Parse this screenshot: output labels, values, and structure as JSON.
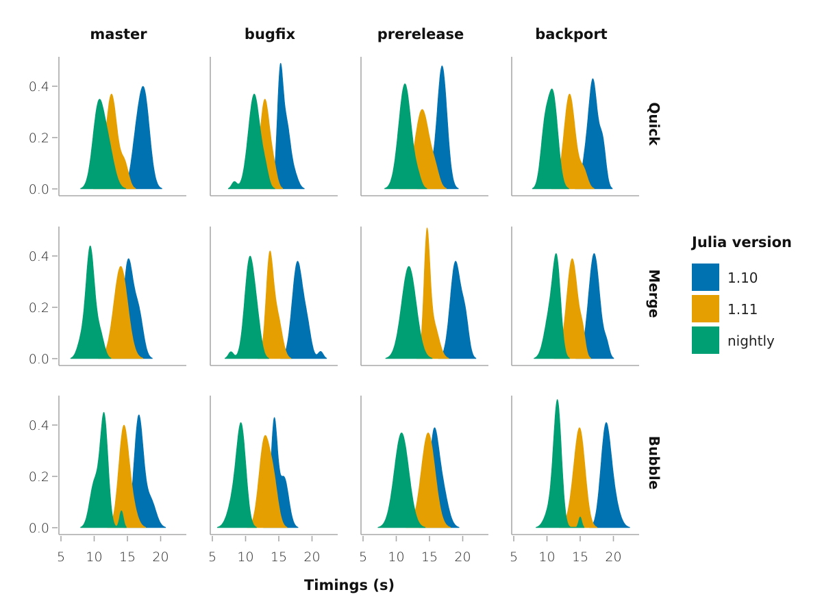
{
  "chart_data": {
    "type": "area",
    "subtype": "faceted-density",
    "title": "",
    "xlabel": "Timings (s)",
    "ylabel": "",
    "xlim": [
      4.8,
      24
    ],
    "ylim": [
      0,
      0.53
    ],
    "xticks": [
      5,
      10,
      15,
      20
    ],
    "xtick_labels": [
      "5",
      "10",
      "15",
      "20"
    ],
    "yticks": [
      0.0,
      0.2,
      0.4
    ],
    "ytick_labels": [
      "0.0",
      "0.2",
      "0.4"
    ],
    "columns": [
      "master",
      "bugfix",
      "prerelease",
      "backport"
    ],
    "rows": [
      "Quick",
      "Merge",
      "Bubble"
    ],
    "legend": {
      "title": "Julia version",
      "position": "right",
      "entries": [
        {
          "label": "1.10",
          "color": "#0072b2"
        },
        {
          "label": "1.11",
          "color": "#e69f00"
        },
        {
          "label": "nightly",
          "color": "#009e73"
        }
      ]
    },
    "draw_order": [
      "1.10",
      "1.11",
      "nightly"
    ],
    "note": "Each density described by gaussian mixture components [mean_s, sd_s, weight]; peak = approximate max density",
    "panels": [
      {
        "row": "Quick",
        "col": "master",
        "series": [
          {
            "name": "1.10",
            "peak_x": 17.4,
            "peak": 0.4,
            "components": [
              [
                17.5,
                0.85,
                0.78
              ],
              [
                16.2,
                0.7,
                0.22
              ]
            ]
          },
          {
            "name": "1.11",
            "peak_x": 12.6,
            "peak": 0.37,
            "components": [
              [
                12.6,
                0.85,
                0.85
              ],
              [
                14.6,
                0.6,
                0.15
              ]
            ]
          },
          {
            "name": "nightly",
            "peak_x": 10.7,
            "peak": 0.35,
            "components": [
              [
                10.6,
                0.85,
                0.65
              ],
              [
                12.1,
                0.9,
                0.35
              ]
            ]
          }
        ]
      },
      {
        "row": "Quick",
        "col": "bugfix",
        "series": [
          {
            "name": "1.10",
            "peak_x": 15.2,
            "peak": 0.49,
            "components": [
              [
                15.2,
                0.45,
                0.55
              ],
              [
                16.2,
                0.55,
                0.35
              ],
              [
                17.3,
                0.6,
                0.1
              ]
            ]
          },
          {
            "name": "1.11",
            "peak_x": 12.9,
            "peak": 0.35,
            "components": [
              [
                12.9,
                0.75,
                0.9
              ],
              [
                14.3,
                0.5,
                0.1
              ]
            ]
          },
          {
            "name": "nightly",
            "peak_x": 11.2,
            "peak": 0.37,
            "components": [
              [
                11.3,
                0.9,
                0.9
              ],
              [
                8.3,
                0.4,
                0.03
              ],
              [
                13.0,
                0.5,
                0.07
              ]
            ]
          }
        ]
      },
      {
        "row": "Quick",
        "col": "prerelease",
        "series": [
          {
            "name": "1.10",
            "peak_x": 16.9,
            "peak": 0.48,
            "components": [
              [
                16.9,
                0.75,
                0.9
              ],
              [
                15.0,
                0.7,
                0.1
              ]
            ]
          },
          {
            "name": "1.11",
            "peak_x": 13.9,
            "peak": 0.31,
            "components": [
              [
                13.9,
                1.1,
                0.92
              ],
              [
                15.9,
                0.6,
                0.08
              ]
            ]
          },
          {
            "name": "nightly",
            "peak_x": 11.3,
            "peak": 0.41,
            "components": [
              [
                11.3,
                0.95,
                0.96
              ],
              [
                13.3,
                0.5,
                0.04
              ]
            ]
          }
        ]
      },
      {
        "row": "Quick",
        "col": "backport",
        "series": [
          {
            "name": "1.10",
            "peak_x": 17.0,
            "peak": 0.43,
            "components": [
              [
                16.9,
                0.7,
                0.72
              ],
              [
                18.4,
                0.5,
                0.2
              ],
              [
                15.6,
                0.5,
                0.08
              ]
            ]
          },
          {
            "name": "1.11",
            "peak_x": 13.3,
            "peak": 0.37,
            "components": [
              [
                13.4,
                0.85,
                0.88
              ],
              [
                15.5,
                0.6,
                0.12
              ]
            ]
          },
          {
            "name": "nightly",
            "peak_x": 10.8,
            "peak": 0.39,
            "components": [
              [
                10.9,
                0.75,
                0.7
              ],
              [
                9.6,
                0.6,
                0.3
              ]
            ]
          }
        ]
      },
      {
        "row": "Merge",
        "col": "master",
        "series": [
          {
            "name": "1.10",
            "peak_x": 15.2,
            "peak": 0.39,
            "components": [
              [
                15.1,
                0.75,
                0.7
              ],
              [
                16.7,
                0.7,
                0.3
              ]
            ]
          },
          {
            "name": "1.11",
            "peak_x": 14.0,
            "peak": 0.36,
            "components": [
              [
                14.0,
                1.05,
                1.0
              ]
            ]
          },
          {
            "name": "nightly",
            "peak_x": 9.4,
            "peak": 0.44,
            "components": [
              [
                9.4,
                0.65,
                0.75
              ],
              [
                8.0,
                0.6,
                0.1
              ],
              [
                10.9,
                0.6,
                0.15
              ]
            ]
          }
        ]
      },
      {
        "row": "Merge",
        "col": "bugfix",
        "series": [
          {
            "name": "1.10",
            "peak_x": 17.8,
            "peak": 0.38,
            "components": [
              [
                17.8,
                0.8,
                0.8
              ],
              [
                19.3,
                0.6,
                0.17
              ],
              [
                21.3,
                0.4,
                0.03
              ]
            ]
          },
          {
            "name": "1.11",
            "peak_x": 13.6,
            "peak": 0.42,
            "components": [
              [
                13.6,
                0.55,
                0.65
              ],
              [
                14.8,
                0.7,
                0.35
              ]
            ]
          },
          {
            "name": "nightly",
            "peak_x": 10.6,
            "peak": 0.4,
            "components": [
              [
                10.6,
                0.75,
                0.8
              ],
              [
                11.8,
                0.6,
                0.17
              ],
              [
                7.8,
                0.4,
                0.03
              ]
            ]
          }
        ]
      },
      {
        "row": "Merge",
        "col": "prerelease",
        "series": [
          {
            "name": "1.10",
            "peak_x": 19.0,
            "peak": 0.38,
            "components": [
              [
                18.9,
                0.8,
                0.8
              ],
              [
                20.4,
                0.55,
                0.2
              ]
            ]
          },
          {
            "name": "1.11",
            "peak_x": 14.6,
            "peak": 0.51,
            "components": [
              [
                14.6,
                0.45,
                0.65
              ],
              [
                15.6,
                0.8,
                0.35
              ]
            ]
          },
          {
            "name": "nightly",
            "peak_x": 11.9,
            "peak": 0.36,
            "components": [
              [
                11.9,
                1.1,
                1.0
              ]
            ]
          }
        ]
      },
      {
        "row": "Merge",
        "col": "backport",
        "series": [
          {
            "name": "1.10",
            "peak_x": 17.1,
            "peak": 0.41,
            "components": [
              [
                17.1,
                0.85,
                0.95
              ],
              [
                19.0,
                0.4,
                0.05
              ]
            ]
          },
          {
            "name": "1.11",
            "peak_x": 13.8,
            "peak": 0.39,
            "components": [
              [
                13.8,
                0.85,
                0.92
              ],
              [
                15.4,
                0.4,
                0.08
              ]
            ]
          },
          {
            "name": "nightly",
            "peak_x": 11.5,
            "peak": 0.41,
            "components": [
              [
                11.5,
                0.6,
                0.6
              ],
              [
                10.4,
                0.8,
                0.4
              ]
            ]
          }
        ]
      },
      {
        "row": "Bubble",
        "col": "master",
        "series": [
          {
            "name": "1.10",
            "peak_x": 16.7,
            "peak": 0.44,
            "components": [
              [
                16.7,
                0.7,
                0.78
              ],
              [
                18.5,
                0.8,
                0.22
              ]
            ]
          },
          {
            "name": "1.11",
            "peak_x": 14.4,
            "peak": 0.4,
            "components": [
              [
                14.4,
                0.75,
                0.8
              ],
              [
                15.6,
                0.8,
                0.2
              ]
            ]
          },
          {
            "name": "nightly",
            "peak_x": 11.5,
            "peak": 0.45,
            "components": [
              [
                11.5,
                0.6,
                0.65
              ],
              [
                10.0,
                0.7,
                0.3
              ],
              [
                14.1,
                0.3,
                0.05
              ]
            ]
          }
        ]
      },
      {
        "row": "Bubble",
        "col": "bugfix",
        "series": [
          {
            "name": "1.10",
            "peak_x": 14.3,
            "peak": 0.43,
            "components": [
              [
                14.3,
                0.5,
                0.6
              ],
              [
                15.8,
                0.7,
                0.4
              ]
            ]
          },
          {
            "name": "1.11",
            "peak_x": 12.8,
            "peak": 0.36,
            "components": [
              [
                12.8,
                0.8,
                0.7
              ],
              [
                14.2,
                0.7,
                0.3
              ]
            ]
          },
          {
            "name": "nightly",
            "peak_x": 9.4,
            "peak": 0.41,
            "components": [
              [
                9.4,
                0.7,
                0.7
              ],
              [
                8.3,
                0.9,
                0.3
              ]
            ]
          }
        ]
      },
      {
        "row": "Bubble",
        "col": "prerelease",
        "series": [
          {
            "name": "1.10",
            "peak_x": 15.6,
            "peak": 0.39,
            "components": [
              [
                15.6,
                0.7,
                0.6
              ],
              [
                16.8,
                0.9,
                0.4
              ]
            ]
          },
          {
            "name": "1.11",
            "peak_x": 14.8,
            "peak": 0.37,
            "components": [
              [
                14.8,
                1.05,
                1.0
              ]
            ]
          },
          {
            "name": "nightly",
            "peak_x": 10.8,
            "peak": 0.37,
            "components": [
              [
                10.8,
                1.1,
                1.0
              ]
            ]
          }
        ]
      },
      {
        "row": "Bubble",
        "col": "backport",
        "series": [
          {
            "name": "1.10",
            "peak_x": 18.8,
            "peak": 0.41,
            "components": [
              [
                18.8,
                0.75,
                0.72
              ],
              [
                19.9,
                0.9,
                0.28
              ]
            ]
          },
          {
            "name": "1.11",
            "peak_x": 15.0,
            "peak": 0.39,
            "components": [
              [
                15.0,
                0.8,
                0.82
              ],
              [
                14.0,
                0.8,
                0.18
              ]
            ]
          },
          {
            "name": "nightly",
            "peak_x": 11.6,
            "peak": 0.5,
            "components": [
              [
                11.6,
                0.6,
                0.8
              ],
              [
                10.5,
                0.8,
                0.17
              ],
              [
                15.0,
                0.25,
                0.03
              ]
            ]
          }
        ]
      }
    ]
  }
}
